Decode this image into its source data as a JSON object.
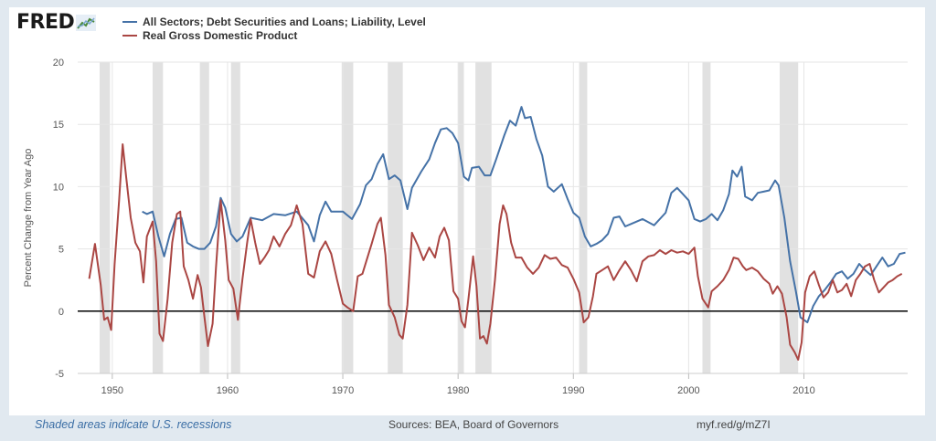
{
  "logo": {
    "text": "FRED",
    "icon": "chart-line-icon"
  },
  "legend": [
    {
      "label": "All Sectors; Debt Securities and Loans; Liability, Level",
      "color": "#4572a7"
    },
    {
      "label": "Real Gross Domestic Product",
      "color": "#aa4643"
    }
  ],
  "footer": {
    "note": "Shaded areas indicate U.S. recessions",
    "source": "Sources: BEA, Board of Governors",
    "url": "myf.red/g/mZ7I"
  },
  "chart_data": {
    "type": "line",
    "ylabel": "Percent Change from Year Ago",
    "xlim": [
      1947,
      2019
    ],
    "ylim": [
      -5,
      20
    ],
    "yticks": [
      -5,
      0,
      5,
      10,
      15,
      20
    ],
    "xticks": [
      1950,
      1960,
      1970,
      1980,
      1990,
      2000,
      2010
    ],
    "grid": true,
    "legend_position": "top-left",
    "recessions": [
      [
        1948.9,
        1949.8
      ],
      [
        1953.5,
        1954.4
      ],
      [
        1957.6,
        1958.4
      ],
      [
        1960.3,
        1961.1
      ],
      [
        1969.9,
        1970.9
      ],
      [
        1973.9,
        1975.2
      ],
      [
        1980.0,
        1980.5
      ],
      [
        1981.5,
        1982.9
      ],
      [
        1990.5,
        1991.2
      ],
      [
        2001.2,
        2001.9
      ],
      [
        2007.9,
        2009.5
      ]
    ],
    "series": [
      {
        "name": "All Sectors; Debt Securities and Loans; Liability, Level",
        "color": "#4572a7",
        "points": [
          [
            1952.6,
            8.0
          ],
          [
            1953.0,
            7.8
          ],
          [
            1953.5,
            8.0
          ],
          [
            1954.0,
            6.0
          ],
          [
            1954.5,
            4.4
          ],
          [
            1955.0,
            6.2
          ],
          [
            1955.5,
            7.4
          ],
          [
            1956.0,
            7.5
          ],
          [
            1956.5,
            5.5
          ],
          [
            1957.0,
            5.2
          ],
          [
            1957.5,
            5.0
          ],
          [
            1958.0,
            5.0
          ],
          [
            1958.5,
            5.5
          ],
          [
            1959.0,
            6.8
          ],
          [
            1959.4,
            9.1
          ],
          [
            1959.8,
            8.3
          ],
          [
            1960.3,
            6.2
          ],
          [
            1960.8,
            5.6
          ],
          [
            1961.3,
            6.0
          ],
          [
            1962.0,
            7.5
          ],
          [
            1963.0,
            7.3
          ],
          [
            1964.0,
            7.8
          ],
          [
            1965.0,
            7.7
          ],
          [
            1966.0,
            8.0
          ],
          [
            1967.0,
            6.9
          ],
          [
            1967.5,
            5.6
          ],
          [
            1968.0,
            7.7
          ],
          [
            1968.5,
            8.8
          ],
          [
            1969.0,
            8.0
          ],
          [
            1970.0,
            8.0
          ],
          [
            1970.8,
            7.4
          ],
          [
            1971.5,
            8.6
          ],
          [
            1972.0,
            10.1
          ],
          [
            1972.5,
            10.6
          ],
          [
            1973.0,
            11.8
          ],
          [
            1973.5,
            12.6
          ],
          [
            1974.0,
            10.6
          ],
          [
            1974.5,
            10.9
          ],
          [
            1975.0,
            10.5
          ],
          [
            1975.6,
            8.2
          ],
          [
            1976.0,
            9.9
          ],
          [
            1976.8,
            11.2
          ],
          [
            1977.5,
            12.2
          ],
          [
            1978.0,
            13.5
          ],
          [
            1978.5,
            14.6
          ],
          [
            1979.0,
            14.7
          ],
          [
            1979.5,
            14.3
          ],
          [
            1980.0,
            13.5
          ],
          [
            1980.5,
            10.8
          ],
          [
            1980.9,
            10.5
          ],
          [
            1981.2,
            11.5
          ],
          [
            1981.8,
            11.6
          ],
          [
            1982.3,
            10.9
          ],
          [
            1982.8,
            10.9
          ],
          [
            1983.3,
            12.2
          ],
          [
            1984.0,
            14.1
          ],
          [
            1984.5,
            15.3
          ],
          [
            1985.0,
            14.9
          ],
          [
            1985.5,
            16.4
          ],
          [
            1985.8,
            15.5
          ],
          [
            1986.3,
            15.6
          ],
          [
            1986.8,
            13.8
          ],
          [
            1987.3,
            12.5
          ],
          [
            1987.8,
            10.0
          ],
          [
            1988.3,
            9.6
          ],
          [
            1989.0,
            10.2
          ],
          [
            1989.5,
            9.0
          ],
          [
            1990.0,
            7.9
          ],
          [
            1990.5,
            7.5
          ],
          [
            1991.0,
            6.0
          ],
          [
            1991.5,
            5.2
          ],
          [
            1992.0,
            5.4
          ],
          [
            1992.5,
            5.7
          ],
          [
            1993.0,
            6.2
          ],
          [
            1993.5,
            7.5
          ],
          [
            1994.0,
            7.6
          ],
          [
            1994.5,
            6.8
          ],
          [
            1995.0,
            7.0
          ],
          [
            1996.0,
            7.4
          ],
          [
            1997.0,
            6.9
          ],
          [
            1998.0,
            7.9
          ],
          [
            1998.5,
            9.5
          ],
          [
            1999.0,
            9.9
          ],
          [
            1999.5,
            9.4
          ],
          [
            2000.0,
            8.9
          ],
          [
            2000.5,
            7.4
          ],
          [
            2001.0,
            7.2
          ],
          [
            2001.5,
            7.4
          ],
          [
            2002.0,
            7.8
          ],
          [
            2002.5,
            7.3
          ],
          [
            2003.0,
            8.1
          ],
          [
            2003.5,
            9.4
          ],
          [
            2003.8,
            11.3
          ],
          [
            2004.2,
            10.8
          ],
          [
            2004.6,
            11.6
          ],
          [
            2004.9,
            9.2
          ],
          [
            2005.5,
            8.9
          ],
          [
            2006.0,
            9.5
          ],
          [
            2006.5,
            9.6
          ],
          [
            2007.0,
            9.7
          ],
          [
            2007.5,
            10.5
          ],
          [
            2007.8,
            10.1
          ],
          [
            2008.3,
            7.5
          ],
          [
            2008.8,
            4.0
          ],
          [
            2009.3,
            1.6
          ],
          [
            2009.7,
            -0.5
          ],
          [
            2010.3,
            -0.9
          ],
          [
            2010.8,
            0.4
          ],
          [
            2011.3,
            1.2
          ],
          [
            2011.8,
            1.7
          ],
          [
            2012.3,
            2.3
          ],
          [
            2012.8,
            3.0
          ],
          [
            2013.3,
            3.2
          ],
          [
            2013.8,
            2.6
          ],
          [
            2014.3,
            3.0
          ],
          [
            2014.8,
            3.8
          ],
          [
            2015.3,
            3.3
          ],
          [
            2015.8,
            2.9
          ],
          [
            2016.3,
            3.6
          ],
          [
            2016.8,
            4.3
          ],
          [
            2017.3,
            3.6
          ],
          [
            2017.8,
            3.8
          ],
          [
            2018.3,
            4.6
          ],
          [
            2018.8,
            4.7
          ]
        ]
      },
      {
        "name": "Real Gross Domestic Product",
        "color": "#aa4643",
        "points": [
          [
            1948.0,
            2.6
          ],
          [
            1948.5,
            5.4
          ],
          [
            1949.0,
            2.1
          ],
          [
            1949.3,
            -0.7
          ],
          [
            1949.6,
            -0.5
          ],
          [
            1949.9,
            -1.5
          ],
          [
            1950.2,
            3.8
          ],
          [
            1950.6,
            9.0
          ],
          [
            1950.9,
            13.4
          ],
          [
            1951.2,
            10.8
          ],
          [
            1951.6,
            7.5
          ],
          [
            1952.0,
            5.5
          ],
          [
            1952.4,
            4.8
          ],
          [
            1952.7,
            2.3
          ],
          [
            1953.0,
            6.0
          ],
          [
            1953.5,
            7.2
          ],
          [
            1953.8,
            4.0
          ],
          [
            1954.1,
            -1.8
          ],
          [
            1954.4,
            -2.4
          ],
          [
            1954.8,
            1.0
          ],
          [
            1955.2,
            5.5
          ],
          [
            1955.6,
            7.8
          ],
          [
            1955.9,
            8.0
          ],
          [
            1956.2,
            3.6
          ],
          [
            1956.6,
            2.5
          ],
          [
            1957.0,
            1.0
          ],
          [
            1957.4,
            2.9
          ],
          [
            1957.7,
            1.9
          ],
          [
            1958.0,
            -0.5
          ],
          [
            1958.3,
            -2.8
          ],
          [
            1958.7,
            -1.0
          ],
          [
            1959.0,
            3.5
          ],
          [
            1959.4,
            8.9
          ],
          [
            1959.8,
            5.7
          ],
          [
            1960.1,
            2.5
          ],
          [
            1960.5,
            1.8
          ],
          [
            1960.9,
            -0.7
          ],
          [
            1961.3,
            2.6
          ],
          [
            1961.7,
            5.5
          ],
          [
            1962.0,
            7.4
          ],
          [
            1962.4,
            5.5
          ],
          [
            1962.8,
            3.8
          ],
          [
            1963.2,
            4.3
          ],
          [
            1963.6,
            4.9
          ],
          [
            1964.0,
            6.0
          ],
          [
            1964.5,
            5.2
          ],
          [
            1965.0,
            6.2
          ],
          [
            1965.5,
            6.9
          ],
          [
            1966.0,
            8.5
          ],
          [
            1966.5,
            7.0
          ],
          [
            1967.0,
            3.0
          ],
          [
            1967.5,
            2.7
          ],
          [
            1968.0,
            4.8
          ],
          [
            1968.5,
            5.6
          ],
          [
            1969.0,
            4.6
          ],
          [
            1969.5,
            2.5
          ],
          [
            1970.0,
            0.6
          ],
          [
            1970.4,
            0.3
          ],
          [
            1970.9,
            0.0
          ],
          [
            1971.3,
            2.8
          ],
          [
            1971.7,
            3.0
          ],
          [
            1972.0,
            3.9
          ],
          [
            1972.5,
            5.4
          ],
          [
            1973.0,
            7.0
          ],
          [
            1973.3,
            7.5
          ],
          [
            1973.7,
            4.5
          ],
          [
            1974.0,
            0.5
          ],
          [
            1974.5,
            -0.5
          ],
          [
            1974.9,
            -1.9
          ],
          [
            1975.2,
            -2.2
          ],
          [
            1975.6,
            0.5
          ],
          [
            1976.0,
            6.3
          ],
          [
            1976.5,
            5.3
          ],
          [
            1977.0,
            4.1
          ],
          [
            1977.5,
            5.1
          ],
          [
            1978.0,
            4.3
          ],
          [
            1978.4,
            6.0
          ],
          [
            1978.8,
            6.7
          ],
          [
            1979.2,
            5.7
          ],
          [
            1979.6,
            1.6
          ],
          [
            1980.0,
            1.0
          ],
          [
            1980.3,
            -0.8
          ],
          [
            1980.6,
            -1.3
          ],
          [
            1980.9,
            1.0
          ],
          [
            1981.3,
            4.4
          ],
          [
            1981.6,
            2.0
          ],
          [
            1981.9,
            -2.2
          ],
          [
            1982.2,
            -2.0
          ],
          [
            1982.5,
            -2.6
          ],
          [
            1982.8,
            -1.0
          ],
          [
            1983.2,
            2.5
          ],
          [
            1983.6,
            7.0
          ],
          [
            1983.9,
            8.5
          ],
          [
            1984.2,
            7.8
          ],
          [
            1984.6,
            5.5
          ],
          [
            1985.0,
            4.3
          ],
          [
            1985.5,
            4.3
          ],
          [
            1986.0,
            3.5
          ],
          [
            1986.5,
            3.0
          ],
          [
            1987.0,
            3.5
          ],
          [
            1987.5,
            4.5
          ],
          [
            1988.0,
            4.2
          ],
          [
            1988.5,
            4.3
          ],
          [
            1989.0,
            3.7
          ],
          [
            1989.5,
            3.5
          ],
          [
            1990.0,
            2.6
          ],
          [
            1990.5,
            1.5
          ],
          [
            1990.9,
            -0.9
          ],
          [
            1991.3,
            -0.5
          ],
          [
            1991.7,
            1.2
          ],
          [
            1992.0,
            3.0
          ],
          [
            1992.5,
            3.3
          ],
          [
            1993.0,
            3.6
          ],
          [
            1993.5,
            2.5
          ],
          [
            1994.0,
            3.3
          ],
          [
            1994.5,
            4.0
          ],
          [
            1995.0,
            3.3
          ],
          [
            1995.5,
            2.4
          ],
          [
            1996.0,
            4.0
          ],
          [
            1996.5,
            4.4
          ],
          [
            1997.0,
            4.5
          ],
          [
            1997.5,
            4.9
          ],
          [
            1998.0,
            4.6
          ],
          [
            1998.5,
            4.9
          ],
          [
            1999.0,
            4.7
          ],
          [
            1999.5,
            4.8
          ],
          [
            2000.0,
            4.6
          ],
          [
            2000.5,
            5.1
          ],
          [
            2000.8,
            2.8
          ],
          [
            2001.2,
            1.0
          ],
          [
            2001.7,
            0.3
          ],
          [
            2002.0,
            1.6
          ],
          [
            2002.5,
            2.0
          ],
          [
            2003.0,
            2.5
          ],
          [
            2003.5,
            3.3
          ],
          [
            2003.9,
            4.3
          ],
          [
            2004.3,
            4.2
          ],
          [
            2004.7,
            3.6
          ],
          [
            2005.0,
            3.3
          ],
          [
            2005.5,
            3.5
          ],
          [
            2006.0,
            3.2
          ],
          [
            2006.5,
            2.6
          ],
          [
            2007.0,
            2.2
          ],
          [
            2007.3,
            1.4
          ],
          [
            2007.7,
            2.0
          ],
          [
            2008.1,
            1.4
          ],
          [
            2008.5,
            -0.5
          ],
          [
            2008.8,
            -2.7
          ],
          [
            2009.2,
            -3.3
          ],
          [
            2009.5,
            -3.9
          ],
          [
            2009.8,
            -2.5
          ],
          [
            2010.1,
            1.5
          ],
          [
            2010.5,
            2.8
          ],
          [
            2010.9,
            3.2
          ],
          [
            2011.3,
            2.1
          ],
          [
            2011.7,
            1.1
          ],
          [
            2012.1,
            1.5
          ],
          [
            2012.5,
            2.5
          ],
          [
            2012.9,
            1.5
          ],
          [
            2013.3,
            1.7
          ],
          [
            2013.7,
            2.2
          ],
          [
            2014.1,
            1.2
          ],
          [
            2014.5,
            2.5
          ],
          [
            2014.9,
            3.0
          ],
          [
            2015.3,
            3.6
          ],
          [
            2015.7,
            3.8
          ],
          [
            2016.1,
            2.5
          ],
          [
            2016.5,
            1.5
          ],
          [
            2016.9,
            1.9
          ],
          [
            2017.3,
            2.3
          ],
          [
            2017.7,
            2.5
          ],
          [
            2018.1,
            2.8
          ],
          [
            2018.5,
            3.0
          ]
        ]
      }
    ]
  }
}
